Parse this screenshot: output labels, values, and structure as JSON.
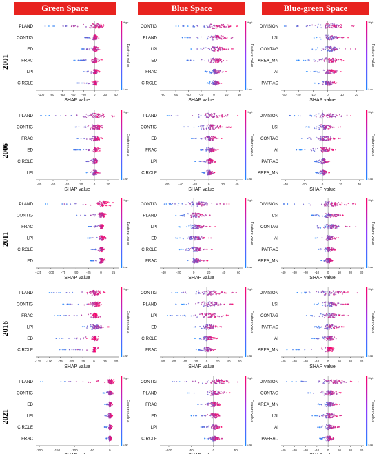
{
  "figure": {
    "headers": [
      "Green Space",
      "Blue Space",
      "Blue-green Space"
    ],
    "years": [
      "2001",
      "2006",
      "2011",
      "2016",
      "2021"
    ],
    "colorbar": {
      "high": "High",
      "low": "Low",
      "title": "Feature value"
    },
    "colors": {
      "header_bg": "#e8231f",
      "low": "#1e88ff",
      "high": "#ff0066"
    }
  },
  "chart_data": [
    {
      "type": "scatter",
      "subtype": "shap-beeswarm",
      "group": "Green Space",
      "year": "2001",
      "xlabel": "SHAP value",
      "features": [
        "PLAND",
        "CONTIG",
        "ED",
        "FRAC",
        "LPI",
        "CIRCLE"
      ],
      "xticks": [
        -100,
        -80,
        -60,
        -40,
        -20,
        0,
        20,
        40
      ],
      "xlim": [
        -110,
        45
      ],
      "spread": [
        [
          -100,
          30
        ],
        [
          -20,
          8
        ],
        [
          -25,
          12
        ],
        [
          -40,
          15
        ],
        [
          -25,
          10
        ],
        [
          -35,
          8
        ]
      ]
    },
    {
      "type": "scatter",
      "subtype": "shap-beeswarm",
      "group": "Blue Space",
      "year": "2001",
      "xlabel": "SHAP value",
      "features": [
        "CONTIG",
        "PLAND",
        "LPI",
        "ED",
        "FRAC",
        "CIRCLE"
      ],
      "xticks": [
        -80,
        -60,
        -40,
        -20,
        0,
        20,
        40
      ],
      "xlim": [
        -85,
        45
      ],
      "spread": [
        [
          -60,
          40
        ],
        [
          -50,
          35
        ],
        [
          -40,
          30
        ],
        [
          -45,
          25
        ],
        [
          -15,
          20
        ],
        [
          -12,
          15
        ]
      ]
    },
    {
      "type": "scatter",
      "subtype": "shap-beeswarm",
      "group": "Blue-green Space",
      "year": "2001",
      "xlabel": "SHAP value",
      "features": [
        "DIVISION",
        "LSI",
        "CONTAG",
        "AREA_MN",
        "AI",
        "PAFRAC"
      ],
      "xticks": [
        -30,
        -20,
        -10,
        0,
        10,
        20
      ],
      "xlim": [
        -32,
        25
      ],
      "spread": [
        [
          -30,
          20
        ],
        [
          -10,
          15
        ],
        [
          -12,
          20
        ],
        [
          -22,
          12
        ],
        [
          -15,
          10
        ],
        [
          -10,
          8
        ]
      ]
    },
    {
      "type": "scatter",
      "subtype": "shap-beeswarm",
      "group": "Green Space",
      "year": "2006",
      "xlabel": "SHAP value",
      "features": [
        "PLAND",
        "CONTIG",
        "FRAC",
        "ED",
        "CIRCLE",
        "LPI"
      ],
      "xticks": [
        -80,
        -60,
        -40,
        -20,
        0,
        20
      ],
      "xlim": [
        -85,
        35
      ],
      "spread": [
        [
          -80,
          30
        ],
        [
          -40,
          20
        ],
        [
          -25,
          12
        ],
        [
          -30,
          10
        ],
        [
          -15,
          8
        ],
        [
          -12,
          8
        ]
      ]
    },
    {
      "type": "scatter",
      "subtype": "shap-beeswarm",
      "group": "Blue Space",
      "year": "2006",
      "xlabel": "SHAP value",
      "features": [
        "PLAND",
        "CONTIG",
        "ED",
        "FRAC",
        "LPI",
        "CIRCLE"
      ],
      "xticks": [
        -60,
        -40,
        -20,
        0,
        20,
        40
      ],
      "xlim": [
        -70,
        48
      ],
      "spread": [
        [
          -65,
          45
        ],
        [
          -50,
          40
        ],
        [
          -25,
          20
        ],
        [
          -15,
          15
        ],
        [
          -20,
          10
        ],
        [
          -10,
          10
        ]
      ]
    },
    {
      "type": "scatter",
      "subtype": "shap-beeswarm",
      "group": "Blue-green Space",
      "year": "2006",
      "xlabel": "SHAP value",
      "features": [
        "DIVISION",
        "LSI",
        "CONTAG",
        "AI",
        "PAFRAC",
        "AREA_MN"
      ],
      "xticks": [
        -40,
        -20,
        0,
        20,
        40
      ],
      "xlim": [
        -45,
        45
      ],
      "spread": [
        [
          -40,
          40
        ],
        [
          -20,
          20
        ],
        [
          -25,
          20
        ],
        [
          -30,
          15
        ],
        [
          -10,
          8
        ],
        [
          -8,
          8
        ]
      ]
    },
    {
      "type": "scatter",
      "subtype": "shap-beeswarm",
      "group": "Green Space",
      "year": "2011",
      "xlabel": "SHAP value",
      "features": [
        "PLAND",
        "CONTIG",
        "FRAC",
        "LPI",
        "CIRCLE",
        "ED"
      ],
      "xticks": [
        -125,
        -100,
        -75,
        -50,
        -25,
        0,
        25
      ],
      "xlim": [
        -130,
        35
      ],
      "spread": [
        [
          -120,
          25
        ],
        [
          -50,
          15
        ],
        [
          -30,
          10
        ],
        [
          -30,
          12
        ],
        [
          -20,
          8
        ],
        [
          -25,
          10
        ]
      ]
    },
    {
      "type": "scatter",
      "subtype": "shap-beeswarm",
      "group": "Blue Space",
      "year": "2011",
      "xlabel": "SHAP value",
      "features": [
        "CONTIG",
        "PLAND",
        "LPI",
        "ED",
        "CIRCLE",
        "FRAC"
      ],
      "xticks": [
        -40,
        -20,
        0,
        20,
        40,
        60
      ],
      "xlim": [
        -45,
        65
      ],
      "spread": [
        [
          -40,
          50
        ],
        [
          -25,
          25
        ],
        [
          -20,
          30
        ],
        [
          -25,
          25
        ],
        [
          -20,
          25
        ],
        [
          -15,
          20
        ]
      ]
    },
    {
      "type": "scatter",
      "subtype": "shap-beeswarm",
      "group": "Blue-green Space",
      "year": "2011",
      "xlabel": "SHAP value",
      "features": [
        "DIVISION",
        "LSI",
        "CONTAG",
        "AI",
        "PAFRAC",
        "AREA_MN"
      ],
      "xticks": [
        -40,
        -30,
        -20,
        -10,
        0,
        10,
        20,
        30
      ],
      "xlim": [
        -42,
        32
      ],
      "spread": [
        [
          -40,
          25
        ],
        [
          -15,
          15
        ],
        [
          -15,
          25
        ],
        [
          -12,
          10
        ],
        [
          -10,
          8
        ],
        [
          -8,
          6
        ]
      ]
    },
    {
      "type": "scatter",
      "subtype": "shap-beeswarm",
      "group": "Green Space",
      "year": "2016",
      "xlabel": "SHAP value",
      "features": [
        "PLAND",
        "CONTIG",
        "FRAC",
        "LPI",
        "ED",
        "CIRCLE"
      ],
      "xticks": [
        -125,
        -100,
        -75,
        -50,
        -25,
        0,
        25,
        50
      ],
      "xlim": [
        -130,
        55
      ],
      "spread": [
        [
          -100,
          30
        ],
        [
          -70,
          25
        ],
        [
          -90,
          15
        ],
        [
          -30,
          40
        ],
        [
          -90,
          15
        ],
        [
          -80,
          10
        ]
      ]
    },
    {
      "type": "scatter",
      "subtype": "shap-beeswarm",
      "group": "Blue Space",
      "year": "2016",
      "xlabel": "SHAP value",
      "features": [
        "CONTIG",
        "PLAND",
        "LPI",
        "ED",
        "CIRCLE",
        "FRAC"
      ],
      "xticks": [
        -80,
        -60,
        -40,
        -20,
        0,
        20,
        40,
        60
      ],
      "xlim": [
        -85,
        65
      ],
      "spread": [
        [
          -70,
          55
        ],
        [
          -60,
          55
        ],
        [
          -75,
          40
        ],
        [
          -30,
          30
        ],
        [
          -25,
          20
        ],
        [
          -20,
          20
        ]
      ]
    },
    {
      "type": "scatter",
      "subtype": "shap-beeswarm",
      "group": "Blue-green Space",
      "year": "2016",
      "xlabel": "SHAP value",
      "features": [
        "DIVISION",
        "LSI",
        "CONTAG",
        "PAFRAC",
        "AI",
        "AREA_MN"
      ],
      "xticks": [
        -40,
        -30,
        -20,
        -10,
        0,
        10,
        20,
        30
      ],
      "xlim": [
        -42,
        32
      ],
      "spread": [
        [
          -35,
          30
        ],
        [
          -15,
          20
        ],
        [
          -20,
          20
        ],
        [
          -15,
          15
        ],
        [
          -15,
          10
        ],
        [
          -38,
          8
        ]
      ]
    },
    {
      "type": "scatter",
      "subtype": "shap-beeswarm",
      "group": "Green Space",
      "year": "2021",
      "xlabel": "SHAP value",
      "features": [
        "PLAND",
        "CONTIG",
        "ED",
        "LPI",
        "CIRCLE",
        "FRAC"
      ],
      "xticks": [
        -200,
        -150,
        -100,
        -50,
        0
      ],
      "xlim": [
        -210,
        25
      ],
      "spread": [
        [
          -200,
          20
        ],
        [
          -20,
          10
        ],
        [
          -15,
          8
        ],
        [
          -15,
          8
        ],
        [
          -15,
          8
        ],
        [
          -10,
          6
        ]
      ]
    },
    {
      "type": "scatter",
      "subtype": "shap-beeswarm",
      "group": "Blue Space",
      "year": "2021",
      "xlabel": "SHAP value",
      "features": [
        "CONTIG",
        "PLAND",
        "FRAC",
        "ED",
        "LPI",
        "CIRCLE"
      ],
      "xticks": [
        -100,
        -50,
        0,
        50
      ],
      "xlim": [
        -120,
        65
      ],
      "spread": [
        [
          -110,
          55
        ],
        [
          -60,
          40
        ],
        [
          -40,
          20
        ],
        [
          -50,
          25
        ],
        [
          -30,
          20
        ],
        [
          -20,
          20
        ]
      ]
    },
    {
      "type": "scatter",
      "subtype": "shap-beeswarm",
      "group": "Blue-green Space",
      "year": "2021",
      "xlabel": "SHAP value",
      "features": [
        "DIVISION",
        "CONTAG",
        "AREA_MN",
        "LSI",
        "AI",
        "PAFRAC"
      ],
      "xticks": [
        -40,
        -30,
        -20,
        -10,
        0,
        10,
        20,
        30
      ],
      "xlim": [
        -42,
        32
      ],
      "spread": [
        [
          -38,
          30
        ],
        [
          -20,
          15
        ],
        [
          -10,
          12
        ],
        [
          -15,
          12
        ],
        [
          -10,
          10
        ],
        [
          -8,
          6
        ]
      ]
    }
  ]
}
